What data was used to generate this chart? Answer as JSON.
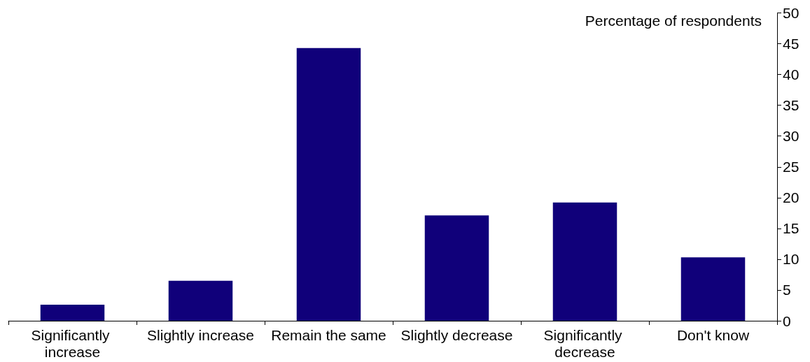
{
  "chart_data": {
    "type": "bar",
    "ylabel": "Percentage of respondents",
    "categories": [
      "Significantly increase",
      "Slightly increase",
      "Remain the same",
      "Slightly decrease",
      "Significantly decrease",
      "Don't know"
    ],
    "values": [
      2.6,
      6.5,
      44.3,
      17.1,
      19.2,
      10.3
    ],
    "color": "#10007a",
    "ylim": [
      0,
      50
    ],
    "yticks": [
      0,
      5,
      10,
      15,
      20,
      25,
      30,
      35,
      40,
      45,
      50
    ],
    "grid": false
  }
}
